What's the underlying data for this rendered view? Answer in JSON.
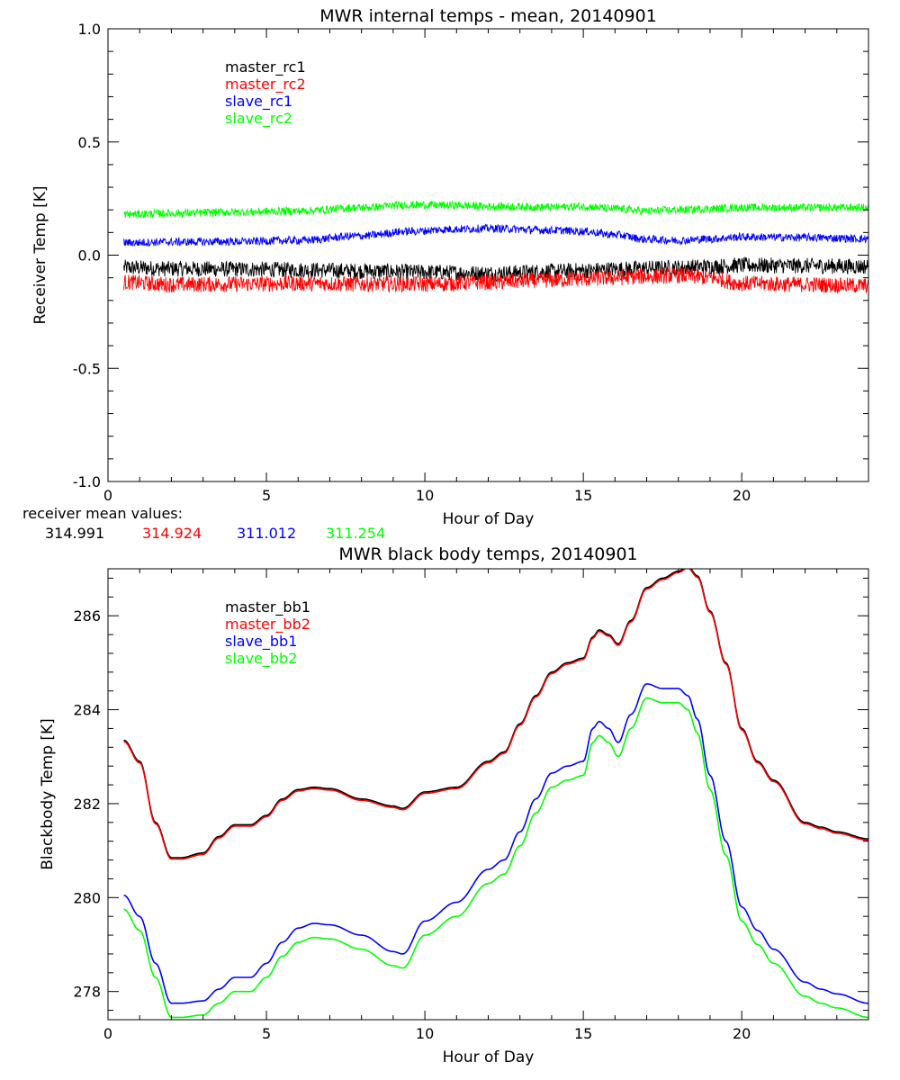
{
  "figure": {
    "receiver_means": {
      "label": "receiver mean values:",
      "values": [
        {
          "text": "314.991",
          "color": "#000000"
        },
        {
          "text": "314.924",
          "color": "#ff0000"
        },
        {
          "text": "311.012",
          "color": "#0000ff"
        },
        {
          "text": "311.254",
          "color": "#00ff00"
        }
      ]
    }
  },
  "chart_data": [
    {
      "type": "line",
      "title": "MWR internal temps - mean, 20140901",
      "xlabel": "Hour of Day",
      "ylabel": "Receiver Temp [K]",
      "xlim": [
        0,
        24
      ],
      "ylim": [
        -1.0,
        1.0
      ],
      "xticks": [
        0,
        5,
        10,
        15,
        20
      ],
      "xtick_labels": [
        "0",
        "5",
        "10",
        "15",
        "20"
      ],
      "yticks": [
        -1.0,
        -0.5,
        0.0,
        0.5,
        1.0
      ],
      "ytick_labels": [
        "-1.0",
        "-0.5",
        "0.0",
        "0.5",
        "1.0"
      ],
      "legend_position": "top-left",
      "noise_band": true,
      "series": [
        {
          "name": "master_rc1",
          "color": "#000000",
          "noise": 0.035,
          "x": [
            0.5,
            2,
            4,
            6,
            8,
            10,
            12,
            14,
            15,
            16,
            17,
            18,
            19,
            20,
            22,
            24
          ],
          "y": [
            -0.055,
            -0.06,
            -0.062,
            -0.065,
            -0.07,
            -0.075,
            -0.08,
            -0.072,
            -0.068,
            -0.062,
            -0.058,
            -0.055,
            -0.05,
            -0.045,
            -0.047,
            -0.05
          ]
        },
        {
          "name": "master_rc2",
          "color": "#ff0000",
          "noise": 0.035,
          "x": [
            0.5,
            2,
            4,
            6,
            8,
            10,
            12,
            14,
            15,
            16,
            17,
            18,
            19,
            20,
            22,
            24
          ],
          "y": [
            -0.12,
            -0.13,
            -0.128,
            -0.125,
            -0.127,
            -0.128,
            -0.12,
            -0.11,
            -0.105,
            -0.1,
            -0.095,
            -0.09,
            -0.1,
            -0.125,
            -0.13,
            -0.135
          ]
        },
        {
          "name": "slave_rc1",
          "color": "#0000ff",
          "noise": 0.018,
          "x": [
            0.5,
            2,
            4,
            6,
            8,
            9.5,
            11,
            12,
            14,
            15,
            16,
            17,
            18,
            19,
            20,
            22,
            24
          ],
          "y": [
            0.055,
            0.058,
            0.06,
            0.065,
            0.085,
            0.105,
            0.115,
            0.118,
            0.11,
            0.105,
            0.09,
            0.07,
            0.065,
            0.072,
            0.08,
            0.078,
            0.072
          ]
        },
        {
          "name": "slave_rc2",
          "color": "#00ff00",
          "noise": 0.018,
          "x": [
            0.5,
            2,
            4,
            6,
            8,
            9.5,
            11,
            12,
            14,
            15,
            16,
            17,
            18,
            19,
            20,
            22,
            24
          ],
          "y": [
            0.18,
            0.185,
            0.19,
            0.195,
            0.21,
            0.222,
            0.22,
            0.215,
            0.212,
            0.215,
            0.205,
            0.195,
            0.2,
            0.205,
            0.21,
            0.21,
            0.21
          ]
        }
      ]
    },
    {
      "type": "line",
      "title": "MWR black body temps, 20140901",
      "xlabel": "Hour of Day",
      "ylabel": "Blackbody Temp [K]",
      "xlim": [
        0,
        24
      ],
      "ylim": [
        277.4,
        287
      ],
      "xticks": [
        0,
        5,
        10,
        15,
        20
      ],
      "xtick_labels": [
        "0",
        "5",
        "10",
        "15",
        "20"
      ],
      "yticks": [
        278,
        280,
        282,
        284,
        286
      ],
      "ytick_labels": [
        "278",
        "280",
        "282",
        "284",
        "286"
      ],
      "legend_position": "top-left",
      "noise_band": false,
      "series": [
        {
          "name": "master_bb1",
          "color": "#000000",
          "x": [
            0.5,
            1,
            1.5,
            2,
            2.3,
            3,
            3.5,
            4,
            4.5,
            5,
            5.5,
            6,
            6.5,
            7,
            8,
            9,
            9.3,
            10,
            11,
            12,
            12.5,
            13,
            13.5,
            14,
            14.5,
            15,
            15.3,
            15.5,
            15.8,
            16.1,
            16.5,
            17,
            17.5,
            18,
            18.3,
            18.6,
            19,
            19.5,
            20,
            20.5,
            21,
            22,
            22.5,
            23,
            24
          ],
          "y": [
            283.35,
            282.9,
            281.6,
            280.85,
            280.85,
            280.95,
            281.3,
            281.55,
            281.55,
            281.75,
            282.1,
            282.3,
            282.35,
            282.32,
            282.1,
            281.95,
            281.9,
            282.25,
            282.35,
            282.9,
            283.1,
            283.7,
            284.3,
            284.8,
            285,
            285.1,
            285.55,
            285.7,
            285.6,
            285.4,
            285.9,
            286.6,
            286.8,
            286.95,
            287.05,
            286.85,
            286.1,
            285,
            283.6,
            282.9,
            282.5,
            281.6,
            281.5,
            281.4,
            281.25
          ]
        },
        {
          "name": "master_bb2",
          "color": "#ff0000",
          "x": [
            0.5,
            1,
            1.5,
            2,
            2.3,
            3,
            3.5,
            4,
            4.5,
            5,
            5.5,
            6,
            6.5,
            7,
            8,
            9,
            9.3,
            10,
            11,
            12,
            12.5,
            13,
            13.5,
            14,
            14.5,
            15,
            15.3,
            15.5,
            15.8,
            16.1,
            16.5,
            17,
            17.5,
            18,
            18.3,
            18.6,
            19,
            19.5,
            20,
            20.5,
            21,
            22,
            22.5,
            23,
            24
          ],
          "y": [
            283.32,
            282.87,
            281.57,
            280.82,
            280.82,
            280.92,
            281.27,
            281.52,
            281.52,
            281.72,
            282.07,
            282.27,
            282.32,
            282.29,
            282.07,
            281.92,
            281.87,
            282.22,
            282.32,
            282.87,
            283.07,
            283.67,
            284.27,
            284.77,
            284.97,
            285.07,
            285.52,
            285.67,
            285.57,
            285.37,
            285.87,
            286.57,
            286.77,
            286.92,
            287.02,
            286.82,
            286.07,
            284.97,
            283.57,
            282.87,
            282.47,
            281.57,
            281.47,
            281.37,
            281.22
          ]
        },
        {
          "name": "slave_bb1",
          "color": "#0000ff",
          "x": [
            0.5,
            1,
            1.5,
            2,
            2.3,
            3,
            3.5,
            4,
            4.5,
            5,
            5.5,
            6,
            6.5,
            7,
            8,
            9,
            9.3,
            10,
            11,
            12,
            12.5,
            13,
            13.5,
            14,
            14.5,
            15,
            15.3,
            15.5,
            15.8,
            16.1,
            16.5,
            17,
            17.5,
            18,
            18.3,
            18.6,
            19,
            19.5,
            20,
            20.5,
            21,
            22,
            22.5,
            23,
            24
          ],
          "y": [
            280.05,
            279.6,
            278.6,
            277.75,
            277.75,
            277.8,
            278.05,
            278.3,
            278.3,
            278.6,
            279.05,
            279.35,
            279.45,
            279.42,
            279.2,
            278.85,
            278.8,
            279.5,
            279.9,
            280.6,
            280.8,
            281.4,
            282.1,
            282.65,
            282.8,
            282.9,
            283.6,
            283.75,
            283.6,
            283.3,
            283.9,
            284.55,
            284.45,
            284.45,
            284.3,
            283.8,
            282.6,
            281.2,
            279.8,
            279.3,
            278.9,
            278.2,
            278.05,
            277.95,
            277.75
          ]
        },
        {
          "name": "slave_bb2",
          "color": "#00ff00",
          "x": [
            0.5,
            1,
            1.5,
            2,
            2.3,
            3,
            3.5,
            4,
            4.5,
            5,
            5.5,
            6,
            6.5,
            7,
            8,
            9,
            9.3,
            10,
            11,
            12,
            12.5,
            13,
            13.5,
            14,
            14.5,
            15,
            15.3,
            15.5,
            15.8,
            16.1,
            16.5,
            17,
            17.5,
            18,
            18.3,
            18.6,
            19,
            19.5,
            20,
            20.5,
            21,
            22,
            22.5,
            23,
            24
          ],
          "y": [
            279.75,
            279.3,
            278.3,
            277.45,
            277.45,
            277.5,
            277.75,
            278.0,
            278.0,
            278.3,
            278.75,
            279.05,
            279.15,
            279.12,
            278.9,
            278.55,
            278.5,
            279.2,
            279.6,
            280.3,
            280.5,
            281.1,
            281.8,
            282.35,
            282.5,
            282.6,
            283.3,
            283.45,
            283.3,
            283.0,
            283.6,
            284.25,
            284.15,
            284.15,
            284.0,
            283.5,
            282.3,
            280.9,
            279.5,
            279.0,
            278.6,
            277.9,
            277.75,
            277.65,
            277.45
          ]
        }
      ]
    }
  ]
}
